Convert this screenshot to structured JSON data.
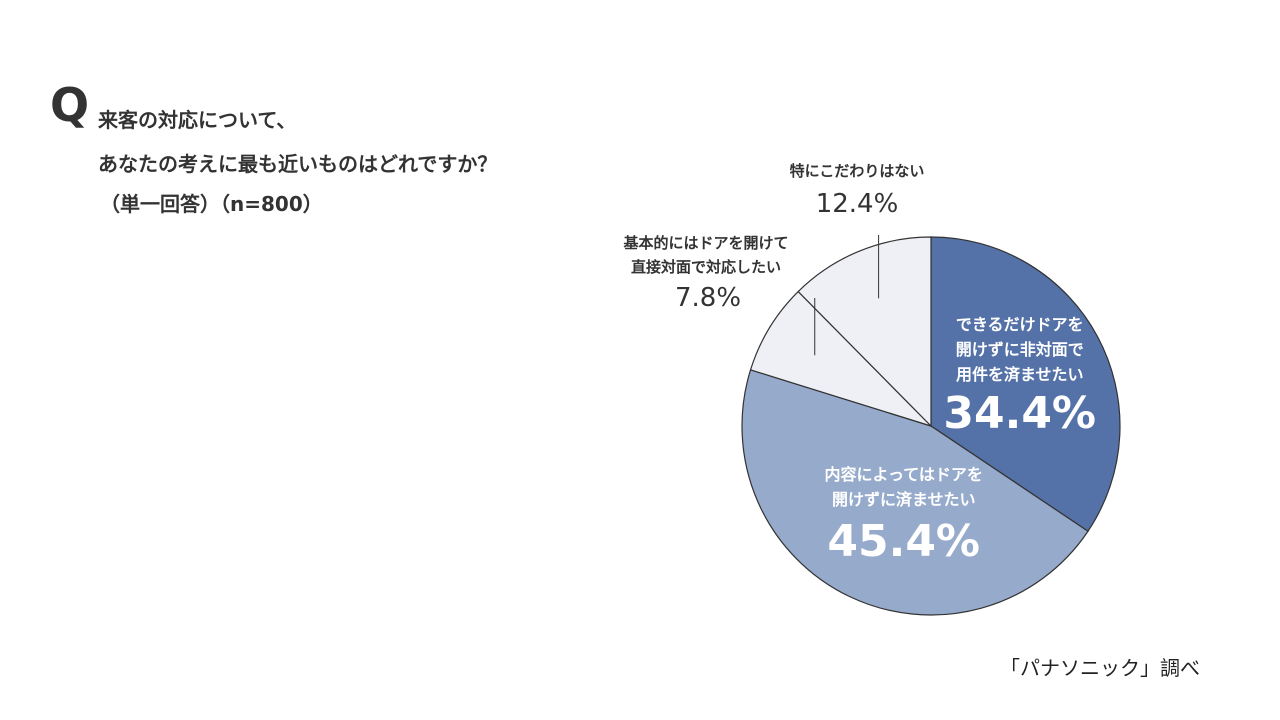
{
  "question": {
    "mark": "Q",
    "line1": "来客の対応について、",
    "line2": "あなたの考えに最も近いものはどれですか？",
    "line3": "（単一回答）（n=800）"
  },
  "source": "「パナソニック」調べ",
  "colors": {
    "dark": "#5572a8",
    "medium": "#96aacb",
    "light": "#eef0f6",
    "stroke": "#333333"
  },
  "chart_data": {
    "type": "pie",
    "slices": [
      {
        "label_lines": [
          "できるだけドアを",
          "開けずに非対面で",
          "用件を済ませたい"
        ],
        "value": 34.4,
        "value_label": "34.4%",
        "color": "#5572a8"
      },
      {
        "label_lines": [
          "内容によってはドアを",
          "開けずに済ませたい"
        ],
        "value": 45.4,
        "value_label": "45.4%",
        "color": "#96aacb"
      },
      {
        "label_lines": [
          "基本的にはドアを開けて",
          "直接対面で対応したい"
        ],
        "value": 7.8,
        "value_label": "7.8%",
        "color": "#eef0f6"
      },
      {
        "label_lines": [
          "特にこだわりはない"
        ],
        "value": 12.4,
        "value_label": "12.4%",
        "color": "#eef0f6"
      }
    ]
  }
}
